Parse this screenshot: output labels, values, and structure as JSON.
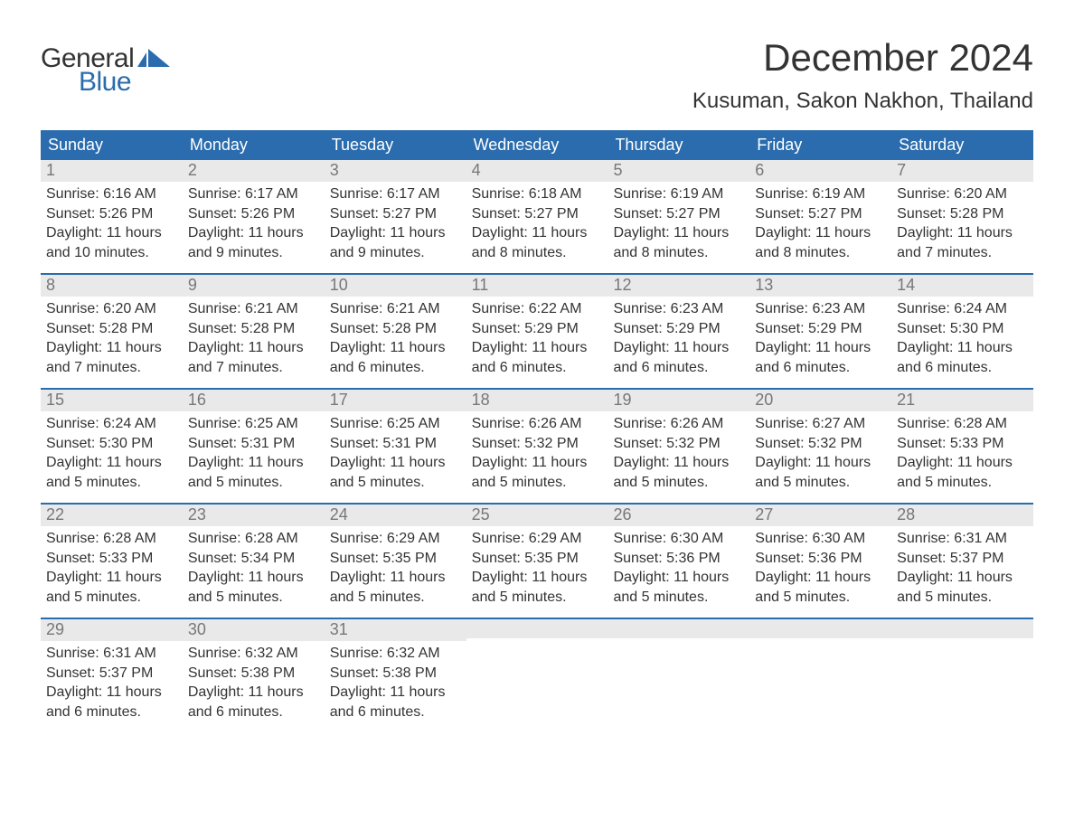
{
  "logo": {
    "text_general": "General",
    "text_blue": "Blue",
    "flag_color": "#2a6cad"
  },
  "title": "December 2024",
  "location": "Kusuman, Sakon Nakhon, Thailand",
  "colors": {
    "header_bg": "#2a6cad",
    "header_text": "#ffffff",
    "daynum_bg": "#e9e9e9",
    "daynum_text": "#777777",
    "body_text": "#333333",
    "week_border": "#2a6cad",
    "page_bg": "#ffffff"
  },
  "typography": {
    "title_fontsize": 42,
    "location_fontsize": 24,
    "dow_fontsize": 18,
    "daynum_fontsize": 18,
    "body_fontsize": 16
  },
  "days_of_week": [
    "Sunday",
    "Monday",
    "Tuesday",
    "Wednesday",
    "Thursday",
    "Friday",
    "Saturday"
  ],
  "weeks": [
    [
      {
        "n": "1",
        "sunrise": "Sunrise: 6:16 AM",
        "sunset": "Sunset: 5:26 PM",
        "daylight1": "Daylight: 11 hours",
        "daylight2": "and 10 minutes."
      },
      {
        "n": "2",
        "sunrise": "Sunrise: 6:17 AM",
        "sunset": "Sunset: 5:26 PM",
        "daylight1": "Daylight: 11 hours",
        "daylight2": "and 9 minutes."
      },
      {
        "n": "3",
        "sunrise": "Sunrise: 6:17 AM",
        "sunset": "Sunset: 5:27 PM",
        "daylight1": "Daylight: 11 hours",
        "daylight2": "and 9 minutes."
      },
      {
        "n": "4",
        "sunrise": "Sunrise: 6:18 AM",
        "sunset": "Sunset: 5:27 PM",
        "daylight1": "Daylight: 11 hours",
        "daylight2": "and 8 minutes."
      },
      {
        "n": "5",
        "sunrise": "Sunrise: 6:19 AM",
        "sunset": "Sunset: 5:27 PM",
        "daylight1": "Daylight: 11 hours",
        "daylight2": "and 8 minutes."
      },
      {
        "n": "6",
        "sunrise": "Sunrise: 6:19 AM",
        "sunset": "Sunset: 5:27 PM",
        "daylight1": "Daylight: 11 hours",
        "daylight2": "and 8 minutes."
      },
      {
        "n": "7",
        "sunrise": "Sunrise: 6:20 AM",
        "sunset": "Sunset: 5:28 PM",
        "daylight1": "Daylight: 11 hours",
        "daylight2": "and 7 minutes."
      }
    ],
    [
      {
        "n": "8",
        "sunrise": "Sunrise: 6:20 AM",
        "sunset": "Sunset: 5:28 PM",
        "daylight1": "Daylight: 11 hours",
        "daylight2": "and 7 minutes."
      },
      {
        "n": "9",
        "sunrise": "Sunrise: 6:21 AM",
        "sunset": "Sunset: 5:28 PM",
        "daylight1": "Daylight: 11 hours",
        "daylight2": "and 7 minutes."
      },
      {
        "n": "10",
        "sunrise": "Sunrise: 6:21 AM",
        "sunset": "Sunset: 5:28 PM",
        "daylight1": "Daylight: 11 hours",
        "daylight2": "and 6 minutes."
      },
      {
        "n": "11",
        "sunrise": "Sunrise: 6:22 AM",
        "sunset": "Sunset: 5:29 PM",
        "daylight1": "Daylight: 11 hours",
        "daylight2": "and 6 minutes."
      },
      {
        "n": "12",
        "sunrise": "Sunrise: 6:23 AM",
        "sunset": "Sunset: 5:29 PM",
        "daylight1": "Daylight: 11 hours",
        "daylight2": "and 6 minutes."
      },
      {
        "n": "13",
        "sunrise": "Sunrise: 6:23 AM",
        "sunset": "Sunset: 5:29 PM",
        "daylight1": "Daylight: 11 hours",
        "daylight2": "and 6 minutes."
      },
      {
        "n": "14",
        "sunrise": "Sunrise: 6:24 AM",
        "sunset": "Sunset: 5:30 PM",
        "daylight1": "Daylight: 11 hours",
        "daylight2": "and 6 minutes."
      }
    ],
    [
      {
        "n": "15",
        "sunrise": "Sunrise: 6:24 AM",
        "sunset": "Sunset: 5:30 PM",
        "daylight1": "Daylight: 11 hours",
        "daylight2": "and 5 minutes."
      },
      {
        "n": "16",
        "sunrise": "Sunrise: 6:25 AM",
        "sunset": "Sunset: 5:31 PM",
        "daylight1": "Daylight: 11 hours",
        "daylight2": "and 5 minutes."
      },
      {
        "n": "17",
        "sunrise": "Sunrise: 6:25 AM",
        "sunset": "Sunset: 5:31 PM",
        "daylight1": "Daylight: 11 hours",
        "daylight2": "and 5 minutes."
      },
      {
        "n": "18",
        "sunrise": "Sunrise: 6:26 AM",
        "sunset": "Sunset: 5:32 PM",
        "daylight1": "Daylight: 11 hours",
        "daylight2": "and 5 minutes."
      },
      {
        "n": "19",
        "sunrise": "Sunrise: 6:26 AM",
        "sunset": "Sunset: 5:32 PM",
        "daylight1": "Daylight: 11 hours",
        "daylight2": "and 5 minutes."
      },
      {
        "n": "20",
        "sunrise": "Sunrise: 6:27 AM",
        "sunset": "Sunset: 5:32 PM",
        "daylight1": "Daylight: 11 hours",
        "daylight2": "and 5 minutes."
      },
      {
        "n": "21",
        "sunrise": "Sunrise: 6:28 AM",
        "sunset": "Sunset: 5:33 PM",
        "daylight1": "Daylight: 11 hours",
        "daylight2": "and 5 minutes."
      }
    ],
    [
      {
        "n": "22",
        "sunrise": "Sunrise: 6:28 AM",
        "sunset": "Sunset: 5:33 PM",
        "daylight1": "Daylight: 11 hours",
        "daylight2": "and 5 minutes."
      },
      {
        "n": "23",
        "sunrise": "Sunrise: 6:28 AM",
        "sunset": "Sunset: 5:34 PM",
        "daylight1": "Daylight: 11 hours",
        "daylight2": "and 5 minutes."
      },
      {
        "n": "24",
        "sunrise": "Sunrise: 6:29 AM",
        "sunset": "Sunset: 5:35 PM",
        "daylight1": "Daylight: 11 hours",
        "daylight2": "and 5 minutes."
      },
      {
        "n": "25",
        "sunrise": "Sunrise: 6:29 AM",
        "sunset": "Sunset: 5:35 PM",
        "daylight1": "Daylight: 11 hours",
        "daylight2": "and 5 minutes."
      },
      {
        "n": "26",
        "sunrise": "Sunrise: 6:30 AM",
        "sunset": "Sunset: 5:36 PM",
        "daylight1": "Daylight: 11 hours",
        "daylight2": "and 5 minutes."
      },
      {
        "n": "27",
        "sunrise": "Sunrise: 6:30 AM",
        "sunset": "Sunset: 5:36 PM",
        "daylight1": "Daylight: 11 hours",
        "daylight2": "and 5 minutes."
      },
      {
        "n": "28",
        "sunrise": "Sunrise: 6:31 AM",
        "sunset": "Sunset: 5:37 PM",
        "daylight1": "Daylight: 11 hours",
        "daylight2": "and 5 minutes."
      }
    ],
    [
      {
        "n": "29",
        "sunrise": "Sunrise: 6:31 AM",
        "sunset": "Sunset: 5:37 PM",
        "daylight1": "Daylight: 11 hours",
        "daylight2": "and 6 minutes."
      },
      {
        "n": "30",
        "sunrise": "Sunrise: 6:32 AM",
        "sunset": "Sunset: 5:38 PM",
        "daylight1": "Daylight: 11 hours",
        "daylight2": "and 6 minutes."
      },
      {
        "n": "31",
        "sunrise": "Sunrise: 6:32 AM",
        "sunset": "Sunset: 5:38 PM",
        "daylight1": "Daylight: 11 hours",
        "daylight2": "and 6 minutes."
      },
      null,
      null,
      null,
      null
    ]
  ]
}
